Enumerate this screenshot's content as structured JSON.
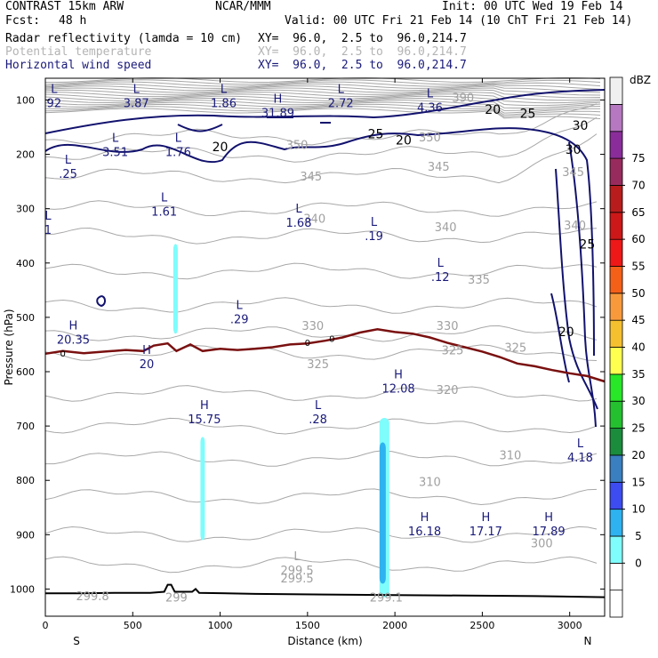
{
  "header": {
    "model": "CONTRAST 15km ARW",
    "org": "NCAR/MMM",
    "init": "Init: 00 UTC Wed 19 Feb 14",
    "fcst_label": "Fcst:",
    "fcst_value": "48 h",
    "valid": "Valid: 00 UTC Fri 21 Feb 14 (10 ChT Fri 21 Feb 14)"
  },
  "fields": [
    {
      "name": "Radar reflectivity (lamda = 10 cm)",
      "xy": "XY=  96.0,  2.5 to  96.0,214.7",
      "color": "#000000"
    },
    {
      "name": "Potential temperature",
      "xy": "XY=  96.0,  2.5 to  96.0,214.7",
      "color": "#b4b4b4"
    },
    {
      "name": "Horizontal wind speed",
      "xy": "XY=  96.0,  2.5 to  96.0,214.7",
      "color": "#1a1a7a"
    }
  ],
  "chart_data": {
    "type": "cross-section",
    "xlabel": "Distance (km)",
    "ylabel": "Pressure (hPa)",
    "xlim": [
      0,
      3200
    ],
    "ylim": [
      1050,
      60
    ],
    "x_ticks": [
      "0",
      "500",
      "1000",
      "1500",
      "2000",
      "2500",
      "3000"
    ],
    "x_tick_values": [
      0,
      500,
      1000,
      1500,
      2000,
      2500,
      3000
    ],
    "y_ticks": [
      "100",
      "200",
      "300",
      "400",
      "500",
      "600",
      "700",
      "800",
      "900",
      "1000"
    ],
    "y_tick_values": [
      100,
      200,
      300,
      400,
      500,
      600,
      700,
      800,
      900,
      1000
    ],
    "south_label": "S",
    "north_label": "N",
    "colorbar": {
      "unit": "dBZ",
      "levels": [
        "0",
        "5",
        "10",
        "15",
        "20",
        "25",
        "30",
        "35",
        "40",
        "45",
        "50",
        "55",
        "60",
        "65",
        "70",
        "75"
      ],
      "colors": [
        "#ffffff",
        "#ffffff",
        "#7ffcfc",
        "#2eb2f0",
        "#3c4cf0",
        "#3a7fc0",
        "#1a8c3c",
        "#24c030",
        "#28e628",
        "#ffff50",
        "#f5c030",
        "#f89a3c",
        "#f56018",
        "#ee1818",
        "#cc1818",
        "#b81c1c",
        "#982b5e",
        "#8a2d9a",
        "#b678c0",
        "#f0f0f0"
      ]
    },
    "theta_labels": [
      {
        "text": "390",
        "x": 2390,
        "p": 95
      },
      {
        "text": "350",
        "x": 1440,
        "p": 182
      },
      {
        "text": "350",
        "x": 2200,
        "p": 168
      },
      {
        "text": "345",
        "x": 1520,
        "p": 240
      },
      {
        "text": "345",
        "x": 2250,
        "p": 222
      },
      {
        "text": "345",
        "x": 3020,
        "p": 232
      },
      {
        "text": "340",
        "x": 1540,
        "p": 318
      },
      {
        "text": "340",
        "x": 2290,
        "p": 333
      },
      {
        "text": "340",
        "x": 3030,
        "p": 330
      },
      {
        "text": "335",
        "x": 2480,
        "p": 430
      },
      {
        "text": "330",
        "x": 1530,
        "p": 515
      },
      {
        "text": "330",
        "x": 2300,
        "p": 515
      },
      {
        "text": "325",
        "x": 1560,
        "p": 585
      },
      {
        "text": "325",
        "x": 2330,
        "p": 560
      },
      {
        "text": "325",
        "x": 2690,
        "p": 555
      },
      {
        "text": "320",
        "x": 2300,
        "p": 633
      },
      {
        "text": "310",
        "x": 2660,
        "p": 753
      },
      {
        "text": "310",
        "x": 2200,
        "p": 802
      },
      {
        "text": "300",
        "x": 2840,
        "p": 915
      },
      {
        "text": "299.5",
        "x": 1440,
        "p": 980
      },
      {
        "text": "299.8",
        "x": 270,
        "p": 1012
      },
      {
        "text": "299",
        "x": 750,
        "p": 1015
      },
      {
        "text": "299.1",
        "x": 1950,
        "p": 1015
      }
    ],
    "wind_contour_labels": [
      {
        "text": "20",
        "x": 1000,
        "p": 186
      },
      {
        "text": "20",
        "x": 2050,
        "p": 174
      },
      {
        "text": "20",
        "x": 2560,
        "p": 117
      },
      {
        "text": "20",
        "x": 2980,
        "p": 526
      },
      {
        "text": "25",
        "x": 1890,
        "p": 162
      },
      {
        "text": "25",
        "x": 2760,
        "p": 125
      },
      {
        "text": "25",
        "x": 3100,
        "p": 365
      },
      {
        "text": "30",
        "x": 3060,
        "p": 147
      },
      {
        "text": "30",
        "x": 3020,
        "p": 191
      }
    ],
    "extrema": [
      {
        "type": "L",
        "value": "92",
        "x": 50,
        "p": 100
      },
      {
        "type": "L",
        "value": "3.87",
        "x": 520,
        "p": 100
      },
      {
        "type": "L",
        "value": "1.86",
        "x": 1020,
        "p": 100
      },
      {
        "type": "H",
        "value": "31.89",
        "x": 1330,
        "p": 118
      },
      {
        "type": "L",
        "value": "2.72",
        "x": 1690,
        "p": 100
      },
      {
        "type": "L",
        "value": "4.36",
        "x": 2200,
        "p": 108
      },
      {
        "type": "L",
        "value": "3.51",
        "x": 400,
        "p": 190
      },
      {
        "type": "L",
        "value": "1.76",
        "x": 760,
        "p": 190
      },
      {
        "type": "L",
        "value": ".25",
        "x": 130,
        "p": 230
      },
      {
        "type": "L",
        "value": "1.61",
        "x": 680,
        "p": 300
      },
      {
        "type": "L",
        "value": "1.68",
        "x": 1450,
        "p": 320
      },
      {
        "type": "L",
        "value": ".19",
        "x": 1880,
        "p": 345
      },
      {
        "type": "L",
        "value": "1",
        "x": 15,
        "p": 333
      },
      {
        "type": "L",
        "value": ".12",
        "x": 2260,
        "p": 420
      },
      {
        "type": "L",
        "value": ".29",
        "x": 1110,
        "p": 498
      },
      {
        "type": "H",
        "value": "20.35",
        "x": 160,
        "p": 535
      },
      {
        "type": "H",
        "value": "20",
        "x": 580,
        "p": 580
      },
      {
        "type": "H",
        "value": "12.08",
        "x": 2020,
        "p": 625
      },
      {
        "type": "H",
        "value": "15.75",
        "x": 910,
        "p": 682
      },
      {
        "type": "L",
        "value": ".28",
        "x": 1560,
        "p": 682
      },
      {
        "type": "L",
        "value": "4.18",
        "x": 3060,
        "p": 752
      },
      {
        "type": "H",
        "value": "16.18",
        "x": 2170,
        "p": 888
      },
      {
        "type": "H",
        "value": "17.17",
        "x": 2520,
        "p": 888
      },
      {
        "type": "H",
        "value": "17.89",
        "x": 2880,
        "p": 888
      },
      {
        "type": "L",
        "value": "299.5",
        "x": 1440,
        "p": 960
      }
    ],
    "freezing_level": {
      "label": "0",
      "points": [
        [
          0,
          567
        ],
        [
          100,
          562
        ],
        [
          220,
          566
        ],
        [
          340,
          563
        ],
        [
          460,
          560
        ],
        [
          560,
          562
        ],
        [
          620,
          552
        ],
        [
          700,
          548
        ],
        [
          750,
          562
        ],
        [
          830,
          550
        ],
        [
          900,
          562
        ],
        [
          1000,
          558
        ],
        [
          1100,
          560
        ],
        [
          1200,
          558
        ],
        [
          1300,
          555
        ],
        [
          1400,
          550
        ],
        [
          1500,
          548
        ],
        [
          1600,
          543
        ],
        [
          1700,
          537
        ],
        [
          1800,
          528
        ],
        [
          1900,
          522
        ],
        [
          2000,
          527
        ],
        [
          2100,
          530
        ],
        [
          2200,
          537
        ],
        [
          2300,
          547
        ],
        [
          2400,
          555
        ],
        [
          2500,
          563
        ],
        [
          2600,
          573
        ],
        [
          2700,
          585
        ],
        [
          2800,
          590
        ],
        [
          2900,
          597
        ],
        [
          3000,
          603
        ],
        [
          3100,
          608
        ],
        [
          3200,
          618
        ]
      ]
    },
    "terrain": {
      "points": [
        [
          0,
          1008
        ],
        [
          200,
          1008
        ],
        [
          400,
          1007
        ],
        [
          600,
          1007
        ],
        [
          680,
          1005
        ],
        [
          700,
          992
        ],
        [
          720,
          992
        ],
        [
          740,
          1005
        ],
        [
          840,
          1005
        ],
        [
          860,
          1000
        ],
        [
          880,
          1007
        ],
        [
          1200,
          1009
        ],
        [
          1600,
          1010
        ],
        [
          2000,
          1011
        ],
        [
          2400,
          1012
        ],
        [
          2800,
          1013
        ],
        [
          3200,
          1015
        ]
      ]
    },
    "reflectivity_cells": [
      {
        "x": 1940,
        "p_top": 685,
        "p_bottom": 1015,
        "dbz": 10
      },
      {
        "x": 1930,
        "p_top": 730,
        "p_bottom": 990,
        "dbz": 15
      },
      {
        "x": 900,
        "p_top": 720,
        "p_bottom": 910,
        "dbz": 10
      },
      {
        "x": 745,
        "p_top": 365,
        "p_bottom": 530,
        "dbz": 10
      }
    ]
  }
}
